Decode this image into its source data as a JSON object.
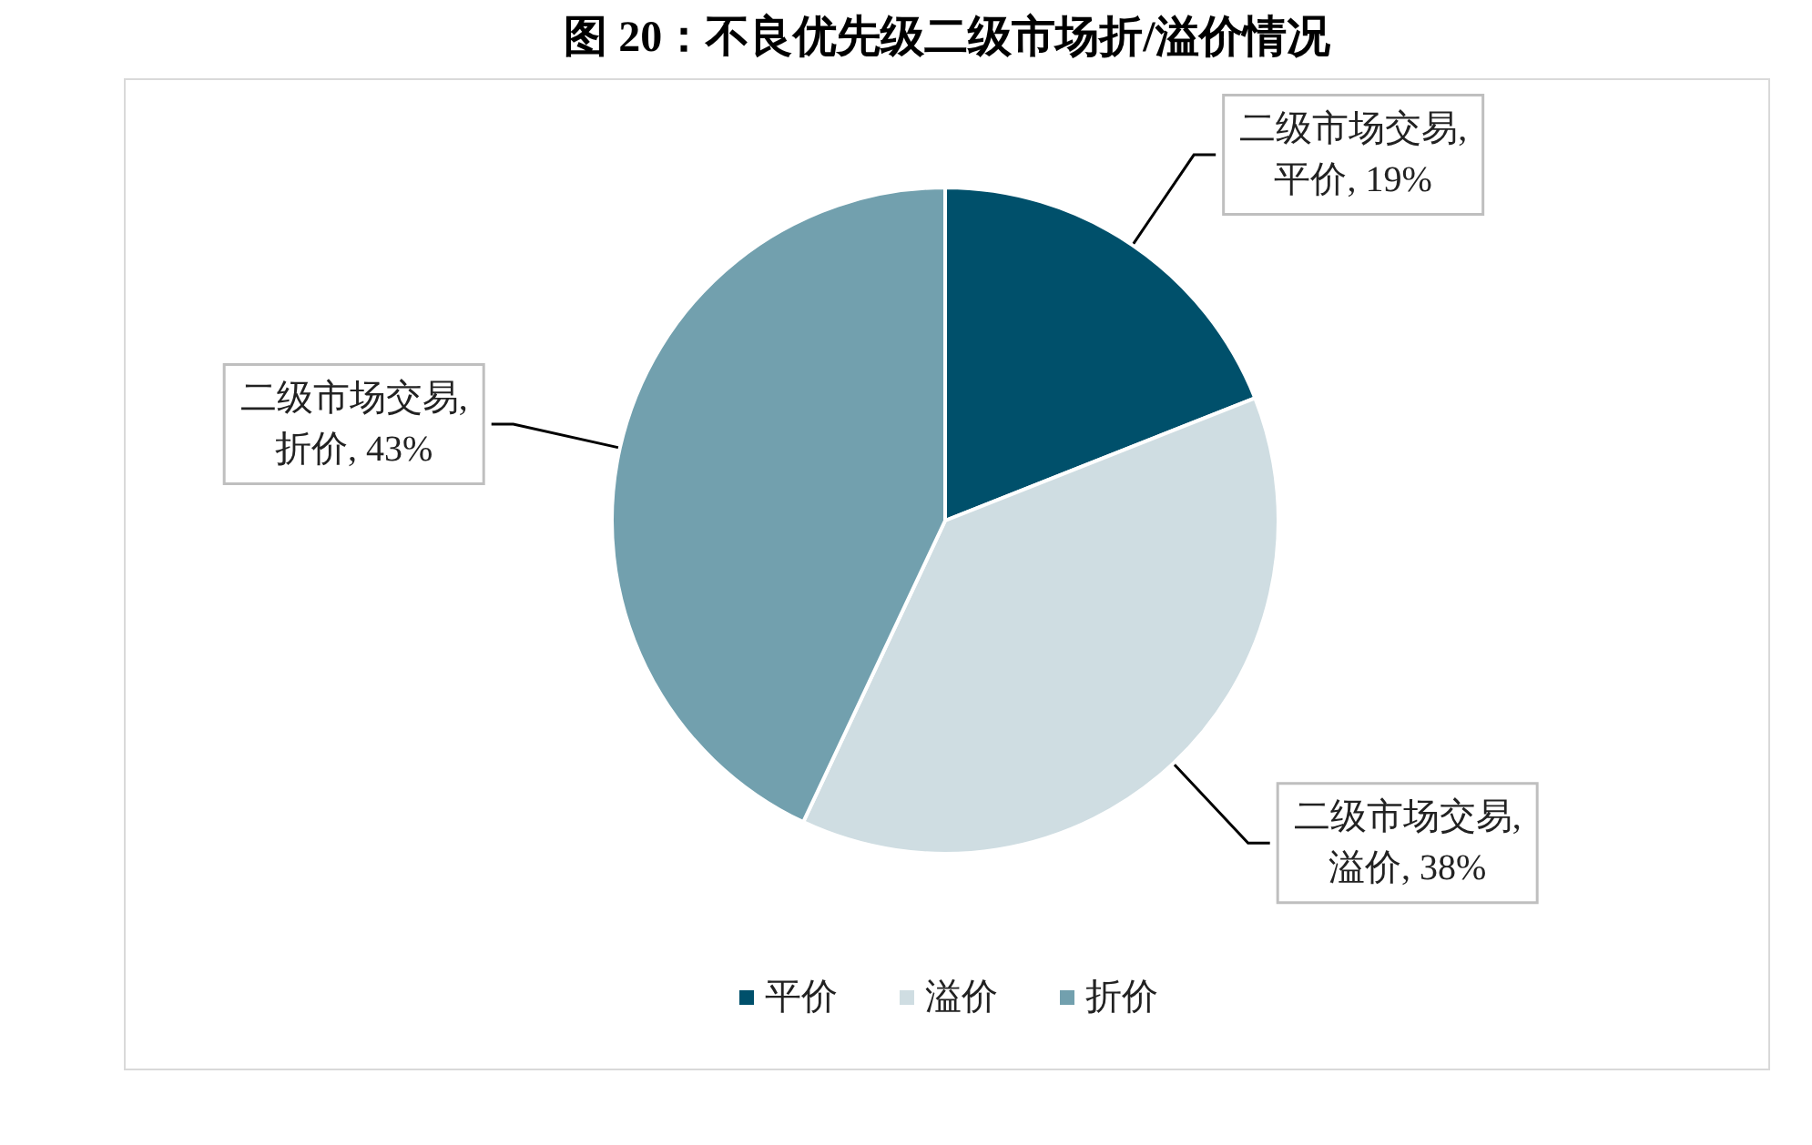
{
  "chart_data": {
    "type": "pie",
    "title": "图 20：不良优先级二级市场折/溢价情况",
    "categories": [
      "平价",
      "溢价",
      "折价"
    ],
    "values": [
      19,
      38,
      43
    ],
    "colors": [
      "#00506b",
      "#cfdde2",
      "#72a0ae"
    ],
    "value_labels": [
      "二级市场交易,\n平价, 19%",
      "二级市场交易,\n溢价, 38%",
      "二级市场交易,\n折价, 43%"
    ],
    "legend": "bottom"
  }
}
